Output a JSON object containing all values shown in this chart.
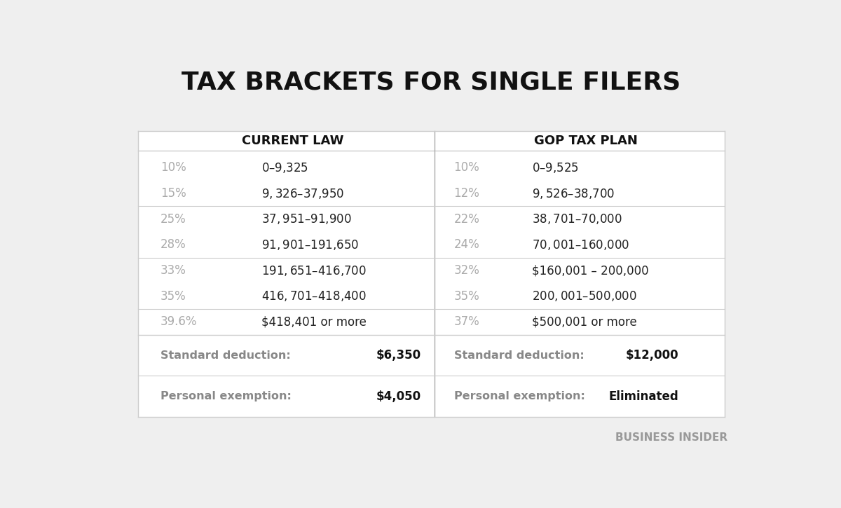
{
  "title": "TAX BRACKETS FOR SINGLE FILERS",
  "col_headers": [
    "CURRENT LAW",
    "GOP TAX PLAN"
  ],
  "current_law": {
    "rates": [
      "10%",
      "15%",
      "25%",
      "28%",
      "33%",
      "35%",
      "39.6%"
    ],
    "ranges": [
      "$0 – $9,325",
      "$9,326 – $37,950",
      "$37,951 – $91,900",
      "$91,901 – $191,650",
      "$191,651 – $416,700",
      "$416,701 – $418,400",
      "$418,401 or more"
    ],
    "std_deduction_label": "Standard deduction:",
    "std_deduction_value": "$6,350",
    "personal_exemption_label": "Personal exemption:",
    "personal_exemption_value": "$4,050"
  },
  "gop_plan": {
    "rates": [
      "10%",
      "12%",
      "22%",
      "24%",
      "32%",
      "35%",
      "37%"
    ],
    "ranges": [
      "$0 – $9,525",
      "$9,526 – $38,700",
      "$38,701 – $70,000",
      "$70,001 – $160,000",
      "$160,001 – 200,000",
      "$200,001 – $500,000",
      "$500,001 or more"
    ],
    "std_deduction_label": "Standard deduction:",
    "std_deduction_value": "$12,000",
    "personal_exemption_label": "Personal exemption:",
    "personal_exemption_value": "Eliminated"
  },
  "background_color": "#efefef",
  "table_bg_color": "#ffffff",
  "rate_color": "#aaaaaa",
  "range_color": "#222222",
  "header_color": "#111111",
  "divider_color": "#cccccc",
  "center_divider_color": "#aaaaaa",
  "footer_label_color": "#888888",
  "footer_value_color": "#111111",
  "watermark": "BUSINESS INSIDER"
}
